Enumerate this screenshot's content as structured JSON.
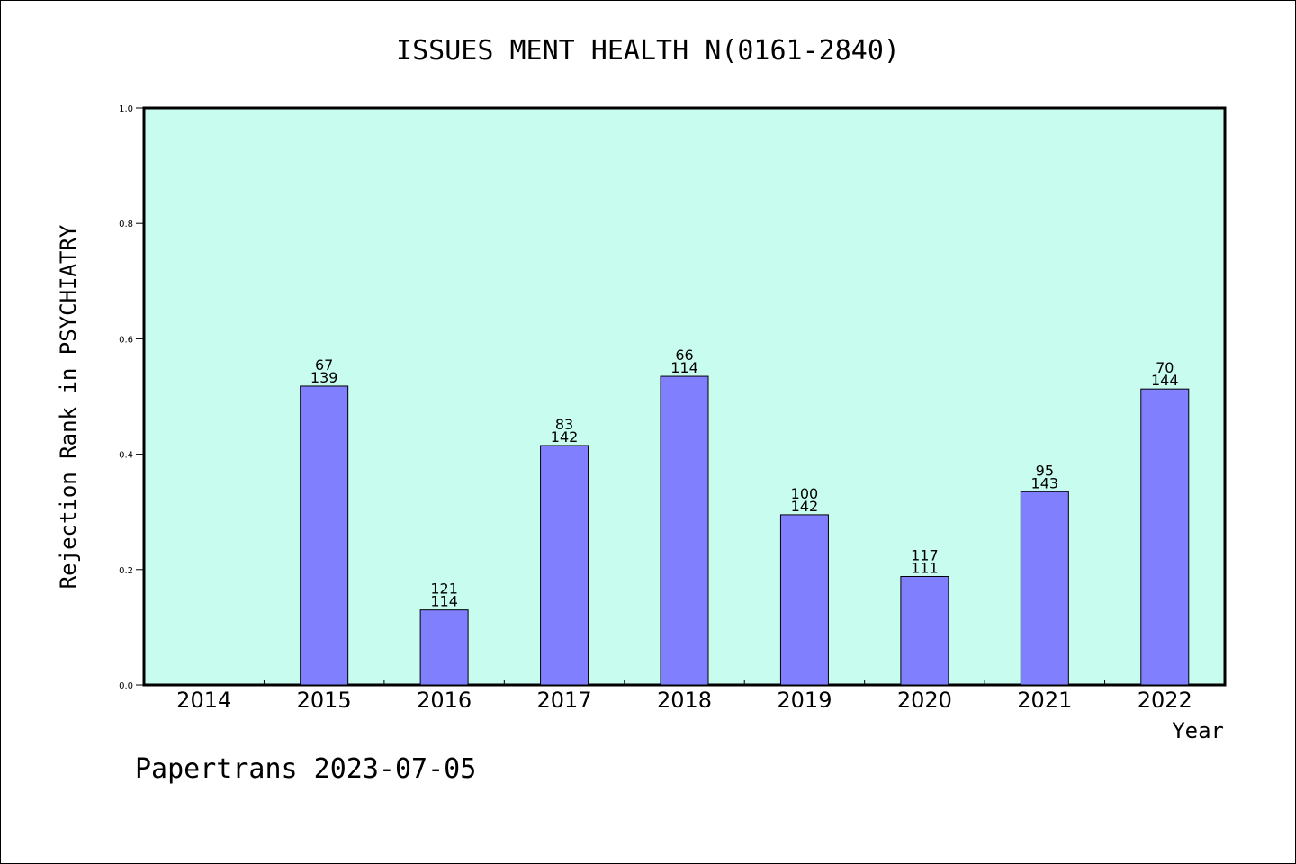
{
  "chart_data": {
    "type": "bar",
    "title": "ISSUES MENT HEALTH N(0161-2840)",
    "xlabel": "Year",
    "ylabel": "Rejection Rank in PSYCHIATRY",
    "categories": [
      "2014",
      "2015",
      "2016",
      "2017",
      "2018",
      "2019",
      "2020",
      "2021",
      "2022"
    ],
    "values": [
      null,
      0.518,
      0.13,
      0.415,
      0.535,
      0.295,
      0.188,
      0.335,
      0.513
    ],
    "label_top": [
      "",
      "67",
      "121",
      "83",
      "66",
      "100",
      "117",
      "95",
      "70"
    ],
    "label_bottom": [
      "",
      "139",
      "114",
      "142",
      "114",
      "142",
      "111",
      "143",
      "144"
    ],
    "ylim": [
      0,
      1.0
    ],
    "yticks": [
      "0.0",
      "0.2",
      "0.4",
      "0.6",
      "0.8",
      "1.0"
    ],
    "grid": false,
    "legend": "none",
    "colors": {
      "plot_background": "#c8fcee",
      "bar_fill": "#8080ff",
      "bar_stroke": "#000000"
    }
  },
  "footer": {
    "text": "Papertrans 2023-07-05"
  }
}
